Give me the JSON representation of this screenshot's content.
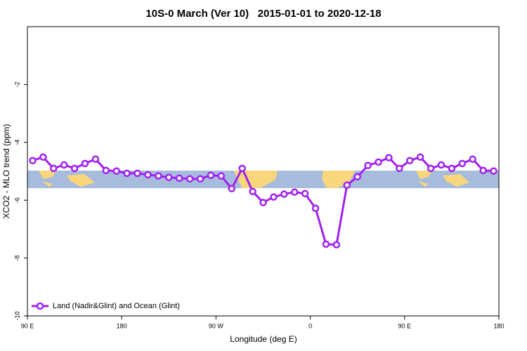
{
  "chart_data": {
    "type": "line",
    "title": "10S-0 March (Ver 10)   2015-01-01 to 2020-12-18",
    "x_label": "Longitude (deg E)",
    "y_label": "XCO2 - MLO trend (ppm)",
    "x": [
      95,
      105,
      115,
      125,
      135,
      145,
      155,
      165,
      175,
      185,
      195,
      205,
      215,
      225,
      235,
      245,
      255,
      265,
      275,
      285,
      295,
      305,
      315,
      325,
      335,
      345,
      355,
      365,
      375,
      385,
      395,
      405,
      415,
      425,
      435,
      445,
      455,
      465,
      475,
      485,
      495,
      505,
      515,
      525,
      535
    ],
    "series": [
      {
        "name": "Land (Nadir&Glint) and Ocean (Glint)",
        "color": "#a020f0",
        "values": [
          -4.63,
          -4.51,
          -4.9,
          -4.78,
          -4.9,
          -4.73,
          -4.58,
          -4.97,
          -4.99,
          -5.07,
          -5.07,
          -5.12,
          -5.16,
          -5.21,
          -5.24,
          -5.26,
          -5.26,
          -5.14,
          -5.16,
          -5.6,
          -4.9,
          -5.7,
          -6.08,
          -5.89,
          -5.79,
          -5.72,
          -5.77,
          -6.28,
          -7.52,
          -7.54,
          -5.48,
          -5.19,
          -4.8,
          -4.68,
          -4.53,
          -4.9,
          -4.63,
          -4.51,
          -4.9,
          -4.78,
          -4.9,
          -4.73,
          -4.58,
          -4.97,
          -4.99
        ]
      }
    ],
    "xlim": [
      90,
      540
    ],
    "xticks": [
      {
        "value": 90,
        "label": "90 E"
      },
      {
        "value": 180,
        "label": "180"
      },
      {
        "value": 270,
        "label": "90 W"
      },
      {
        "value": 360,
        "label": "0"
      },
      {
        "value": 450,
        "label": "90 E"
      },
      {
        "value": 540,
        "label": "180"
      }
    ],
    "ylim": [
      -10,
      0
    ],
    "yticks": [
      -10,
      -8,
      -6,
      -4,
      -2
    ],
    "legend": "bottom-left"
  }
}
